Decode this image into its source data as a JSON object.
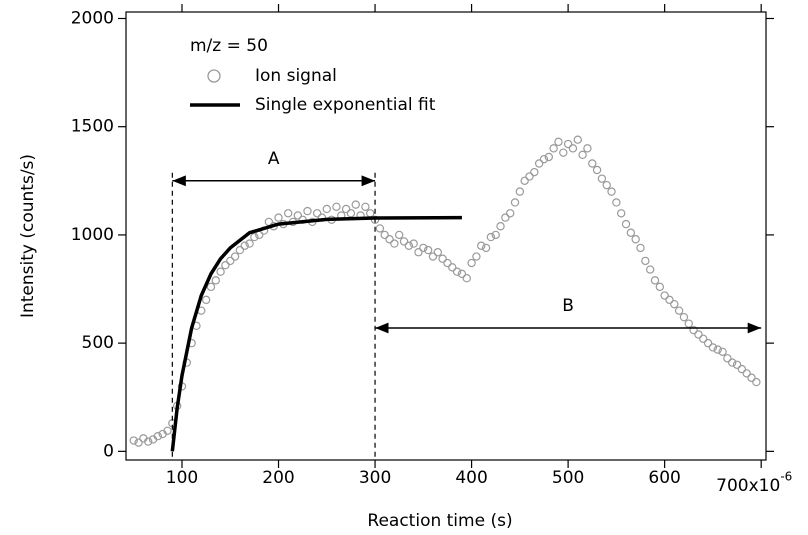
{
  "chart_data": {
    "type": "scatter",
    "xlabel": "Reaction time (s)",
    "ylabel": "Intensity (counts/s)",
    "xlim": [
      42,
      705
    ],
    "ylim": [
      -40,
      2030
    ],
    "xticks": [
      100,
      200,
      300,
      400,
      500,
      600,
      {
        "value": 700,
        "label": "700x10"
      }
    ],
    "x_exponent": "-6",
    "yticks": [
      0,
      500,
      1000,
      1500,
      2000
    ],
    "legend_title": "m/z = 50",
    "legend": "upper left",
    "series": [
      {
        "name": "Ion signal",
        "color": "#9a9a9a",
        "kind": "scatter",
        "x": [
          50,
          55,
          60,
          65,
          70,
          75,
          80,
          85,
          90,
          95,
          100,
          105,
          110,
          115,
          120,
          125,
          130,
          135,
          140,
          145,
          150,
          155,
          160,
          165,
          170,
          175,
          180,
          185,
          190,
          195,
          200,
          205,
          210,
          215,
          220,
          225,
          230,
          235,
          240,
          245,
          250,
          255,
          260,
          265,
          270,
          275,
          280,
          285,
          290,
          295,
          300,
          305,
          310,
          315,
          320,
          325,
          330,
          335,
          340,
          345,
          350,
          355,
          360,
          365,
          370,
          375,
          380,
          385,
          390,
          395,
          400,
          405,
          410,
          415,
          420,
          425,
          430,
          435,
          440,
          445,
          450,
          455,
          460,
          465,
          470,
          475,
          480,
          485,
          490,
          495,
          500,
          505,
          510,
          515,
          520,
          525,
          530,
          535,
          540,
          545,
          550,
          555,
          560,
          565,
          570,
          575,
          580,
          585,
          590,
          595,
          600,
          605,
          610,
          615,
          620,
          625,
          630,
          635,
          640,
          645,
          650,
          655,
          660,
          665,
          670,
          675,
          680,
          685,
          690,
          695
        ],
        "values": [
          50,
          40,
          60,
          45,
          55,
          70,
          80,
          95,
          130,
          210,
          300,
          410,
          500,
          580,
          650,
          700,
          760,
          790,
          830,
          860,
          880,
          900,
          930,
          950,
          960,
          990,
          1000,
          1020,
          1060,
          1040,
          1080,
          1050,
          1100,
          1060,
          1090,
          1070,
          1110,
          1060,
          1100,
          1080,
          1120,
          1070,
          1130,
          1090,
          1120,
          1100,
          1140,
          1090,
          1130,
          1100,
          1070,
          1030,
          1000,
          980,
          960,
          1000,
          970,
          950,
          960,
          920,
          940,
          930,
          900,
          920,
          890,
          870,
          850,
          830,
          820,
          800,
          870,
          900,
          950,
          940,
          990,
          1000,
          1040,
          1080,
          1100,
          1150,
          1200,
          1250,
          1270,
          1290,
          1330,
          1350,
          1360,
          1400,
          1430,
          1380,
          1420,
          1400,
          1440,
          1370,
          1400,
          1330,
          1300,
          1260,
          1230,
          1200,
          1150,
          1100,
          1050,
          1010,
          980,
          940,
          880,
          840,
          790,
          760,
          720,
          700,
          680,
          650,
          620,
          590,
          560,
          540,
          520,
          500,
          480,
          470,
          460,
          430,
          410,
          400,
          380,
          360,
          340,
          320
        ]
      },
      {
        "name": "Single exponential fit",
        "color": "#000000",
        "kind": "line",
        "x": [
          90,
          95,
          100,
          110,
          120,
          130,
          140,
          150,
          170,
          200,
          250,
          300,
          390
        ],
        "values": [
          0,
          200,
          350,
          570,
          720,
          820,
          890,
          940,
          1010,
          1050,
          1072,
          1078,
          1080
        ]
      }
    ],
    "annotations": [
      {
        "text": "A",
        "x": [
          90,
          300
        ],
        "y": 1250
      },
      {
        "text": "B",
        "x": [
          300,
          700
        ],
        "y": 570
      }
    ]
  }
}
